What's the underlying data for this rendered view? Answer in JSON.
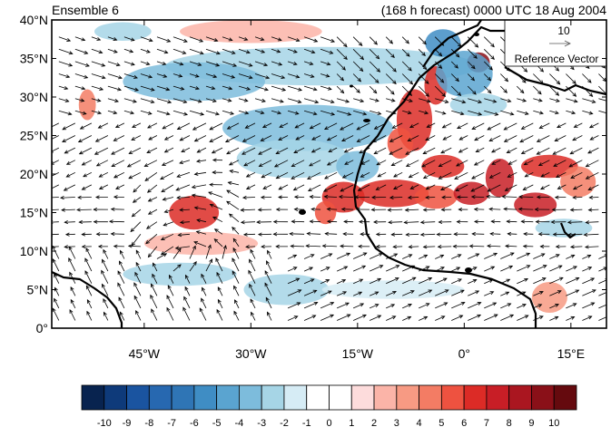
{
  "header": {
    "left_title": "Ensemble 6",
    "right_title": "(168 h forecast) 0000 UTC 18 Aug 2004"
  },
  "map": {
    "lon_range": [
      -58,
      20
    ],
    "lat_range": [
      0,
      40
    ],
    "lat_ticks": [
      {
        "value": 0,
        "label": "0°"
      },
      {
        "value": 5,
        "label": "5°N"
      },
      {
        "value": 10,
        "label": "10°N"
      },
      {
        "value": 15,
        "label": "15°N"
      },
      {
        "value": 20,
        "label": "20°N"
      },
      {
        "value": 25,
        "label": "25°N"
      },
      {
        "value": 30,
        "label": "30°N"
      },
      {
        "value": 35,
        "label": "35°N"
      },
      {
        "value": 40,
        "label": "40°N"
      }
    ],
    "lon_ticks": [
      {
        "value": -45,
        "label": "45°W"
      },
      {
        "value": -30,
        "label": "30°W"
      },
      {
        "value": -15,
        "label": "15°W"
      },
      {
        "value": 0,
        "label": "0°"
      },
      {
        "value": 15,
        "label": "15°E"
      }
    ],
    "reference_vector": {
      "magnitude_label": "10",
      "caption": "Reference Vector"
    },
    "shaded_anomalies": [
      {
        "lon": -38,
        "lat": 15,
        "rx": 3.5,
        "ry": 2.2,
        "level": 6
      },
      {
        "lon": -37,
        "lat": 11,
        "rx": 8,
        "ry": 1.5,
        "level": 2
      },
      {
        "lon": -53,
        "lat": 29,
        "rx": 1.2,
        "ry": 2,
        "level": 4
      },
      {
        "lon": -30,
        "lat": 38.5,
        "rx": 10,
        "ry": 1.5,
        "level": 2
      },
      {
        "lon": -48,
        "lat": 38.5,
        "rx": 4,
        "ry": 1.2,
        "level": -2
      },
      {
        "lon": -20,
        "lat": 34,
        "rx": 22,
        "ry": 2.5,
        "level": -2
      },
      {
        "lon": -38,
        "lat": 32,
        "rx": 10,
        "ry": 2.5,
        "level": -3
      },
      {
        "lon": -22,
        "lat": 26,
        "rx": 12,
        "ry": 3,
        "level": -3
      },
      {
        "lon": -24,
        "lat": 22,
        "rx": 8,
        "ry": 2.5,
        "level": -2
      },
      {
        "lon": -25,
        "lat": 5,
        "rx": 6,
        "ry": 2,
        "level": -2
      },
      {
        "lon": -40,
        "lat": 7,
        "rx": 8,
        "ry": 1.5,
        "level": -2
      },
      {
        "lon": -10,
        "lat": 5,
        "rx": 10,
        "ry": 1.2,
        "level": -1
      },
      {
        "lon": -7,
        "lat": 27,
        "rx": 2.5,
        "ry": 4,
        "level": 6
      },
      {
        "lon": -4,
        "lat": 31.5,
        "rx": 1.6,
        "ry": 2.5,
        "level": 6
      },
      {
        "lon": -9,
        "lat": 24,
        "rx": 1.8,
        "ry": 2,
        "level": 5
      },
      {
        "lon": 2,
        "lat": 34.5,
        "rx": 1.6,
        "ry": 1.3,
        "level": 9
      },
      {
        "lon": 0,
        "lat": 33,
        "rx": 4,
        "ry": 3,
        "level": -4
      },
      {
        "lon": -3,
        "lat": 37,
        "rx": 2.5,
        "ry": 1.8,
        "level": -5
      },
      {
        "lon": 2,
        "lat": 29,
        "rx": 4,
        "ry": 1.5,
        "level": -2
      },
      {
        "lon": -17,
        "lat": 17,
        "rx": 3,
        "ry": 2,
        "level": 6
      },
      {
        "lon": -19.5,
        "lat": 15,
        "rx": 1.5,
        "ry": 1.5,
        "level": 5
      },
      {
        "lon": -10,
        "lat": 17.5,
        "rx": 5,
        "ry": 1.8,
        "level": 6
      },
      {
        "lon": -4,
        "lat": 17,
        "rx": 3,
        "ry": 1.5,
        "level": 5
      },
      {
        "lon": 1,
        "lat": 17.5,
        "rx": 2.5,
        "ry": 1.5,
        "level": 7
      },
      {
        "lon": 5,
        "lat": 19.5,
        "rx": 2,
        "ry": 2.5,
        "level": 7
      },
      {
        "lon": 10,
        "lat": 16,
        "rx": 3,
        "ry": 1.6,
        "level": 7
      },
      {
        "lon": 12,
        "lat": 21,
        "rx": 4,
        "ry": 1.5,
        "level": 6
      },
      {
        "lon": -3,
        "lat": 21,
        "rx": 3,
        "ry": 1.5,
        "level": 6
      },
      {
        "lon": 16,
        "lat": 19,
        "rx": 2.5,
        "ry": 2,
        "level": 4
      },
      {
        "lon": 14,
        "lat": 13,
        "rx": 4,
        "ry": 1.2,
        "level": -2
      },
      {
        "lon": 12,
        "lat": 4,
        "rx": 2.5,
        "ry": 2,
        "level": 3
      },
      {
        "lon": -15,
        "lat": 21,
        "rx": 3,
        "ry": 2,
        "level": -3
      }
    ]
  },
  "colorbar": {
    "levels": [
      "-10",
      "-9",
      "-8",
      "-7",
      "-6",
      "-5",
      "-4",
      "-3",
      "-2",
      "-1",
      "0",
      "1",
      "2",
      "3",
      "4",
      "5",
      "6",
      "7",
      "8",
      "9",
      "10"
    ],
    "colors": [
      "#08234f",
      "#0e3a7a",
      "#1a54a0",
      "#2768b0",
      "#2f75b5",
      "#3f8dc4",
      "#5aa4d0",
      "#7dbcdc",
      "#a6d5e6",
      "#d6ecf5",
      "#ffffff",
      "#ffffff",
      "#fddcdc",
      "#fbb4a8",
      "#f79a83",
      "#f37c64",
      "#ee5240",
      "#dc2b26",
      "#c81e26",
      "#aa1620",
      "#8a1018",
      "#650a0e"
    ]
  }
}
